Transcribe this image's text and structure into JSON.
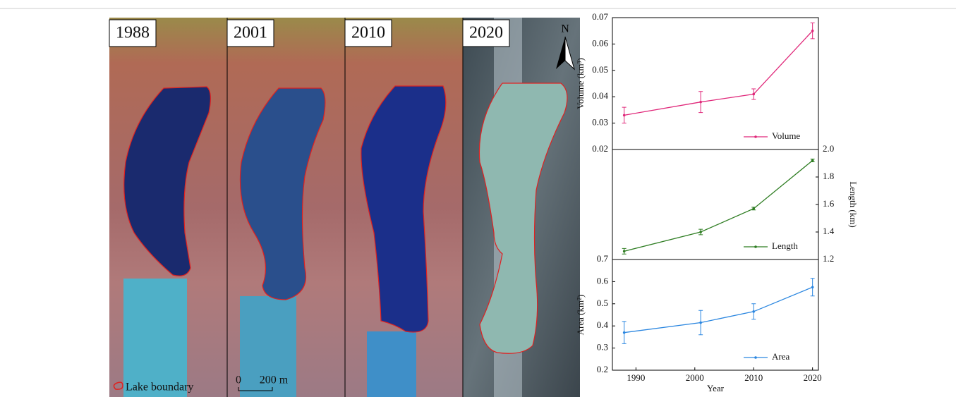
{
  "panels": {
    "years": [
      "1988",
      "2001",
      "2010",
      "2020"
    ],
    "north": "N",
    "legend": "Lake boundary",
    "scale": [
      "0",
      "200 m"
    ]
  },
  "chart_data": [
    {
      "type": "line",
      "ylabel": "Volume (km³)",
      "x": [
        1988,
        2001,
        2010,
        2020
      ],
      "xlim": [
        1986,
        2021
      ],
      "ylim": [
        0.02,
        0.07
      ],
      "yticks": [
        0.02,
        0.03,
        0.04,
        0.05,
        0.06,
        0.07
      ],
      "series": [
        {
          "name": "Volume",
          "color": "#e0287a",
          "values": [
            0.033,
            0.038,
            0.041,
            0.065
          ],
          "errors": [
            0.003,
            0.004,
            0.002,
            0.003
          ]
        }
      ]
    },
    {
      "type": "line",
      "y2label": "Length (km)",
      "x": [
        1988,
        2001,
        2010,
        2020
      ],
      "xlim": [
        1986,
        2021
      ],
      "y2lim": [
        1.2,
        2.0
      ],
      "y2ticks": [
        1.2,
        1.4,
        1.6,
        1.8,
        {
          "value": 2.0,
          "label": "2.0"
        }
      ],
      "series": [
        {
          "name": "Length",
          "color": "#2e7d22",
          "axis": "y2",
          "values": [
            1.26,
            1.4,
            1.57,
            1.92
          ],
          "errors": [
            0.02,
            0.02,
            0.01,
            0.01
          ]
        }
      ]
    },
    {
      "type": "line",
      "ylabel": "Area (km²)",
      "xlabel": "Year",
      "x": [
        1988,
        2001,
        2010,
        2020
      ],
      "xlim": [
        1986,
        2021
      ],
      "xticks": [
        1990,
        2000,
        2010,
        2020
      ],
      "ylim": [
        0.2,
        0.7
      ],
      "yticks": [
        0.2,
        0.3,
        0.4,
        0.5,
        0.6,
        0.7
      ],
      "series": [
        {
          "name": "Area",
          "color": "#2a86e0",
          "values": [
            0.37,
            0.415,
            0.465,
            0.575
          ],
          "errors": [
            0.05,
            0.055,
            0.035,
            0.04
          ]
        }
      ]
    }
  ]
}
